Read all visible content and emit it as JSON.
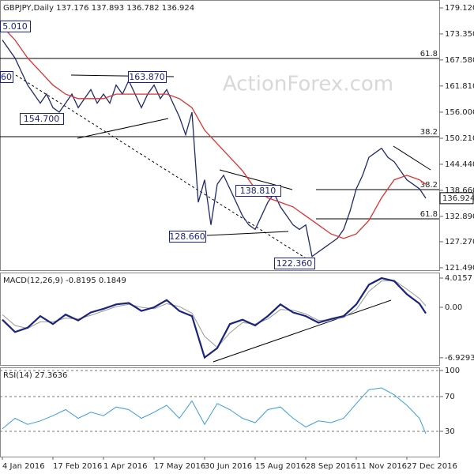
{
  "chart_data": [
    {
      "type": "line",
      "title": "GBPJPY,Daily  137.176 137.893 136.782 136.924",
      "watermark": "ActionForex.com",
      "xlim": [
        -1.5,
        276.5
      ],
      "ylim": [
        120.96,
        180.87
      ],
      "yticks": [
        {
          "value": 179.12,
          "label": "179.120"
        },
        {
          "value": 173.35,
          "label": "173.350"
        },
        {
          "value": 167.58,
          "label": "167.580"
        },
        {
          "value": 161.81,
          "label": "161.810"
        },
        {
          "value": 156,
          "label": "156.000"
        },
        {
          "value": 150.21,
          "label": "150.210"
        },
        {
          "value": 144.44,
          "label": "144.440"
        },
        {
          "value": 138.66,
          "label": "138.660"
        },
        {
          "value": 132.89,
          "label": "132.890"
        },
        {
          "value": 127.27,
          "label": "127.270"
        },
        {
          "value": 121.49,
          "label": "121.490"
        }
      ],
      "last_price": {
        "value": 136.924,
        "label": "136.924"
      },
      "annotations": [
        "5.010",
        "60",
        "163.870",
        "154.700",
        "138.810",
        "128.660",
        "122.360"
      ],
      "levels": [
        {
          "value": 167.9,
          "label": "61.8"
        },
        {
          "value": 150.57,
          "label": "38.2"
        },
        {
          "value": 138.83,
          "label": "38.2"
        },
        {
          "value": 132.35,
          "label": "61.8"
        }
      ],
      "series": [
        {
          "color": "#1f2a6b",
          "x": [
            0,
            4,
            8,
            12,
            16,
            20,
            24,
            28,
            32,
            36,
            40,
            44,
            48,
            52,
            56,
            60,
            64,
            68,
            72,
            76,
            80,
            84,
            88,
            92,
            96,
            100,
            104,
            108,
            112,
            116,
            120,
            124,
            128,
            132,
            136,
            140,
            144,
            148,
            152,
            156,
            160,
            164,
            168,
            172,
            176,
            180,
            184,
            188,
            192,
            196,
            200,
            204,
            208,
            212,
            216,
            220,
            224,
            228,
            232,
            236,
            240,
            244,
            248,
            252,
            256,
            260,
            264,
            268
          ],
          "values": [
            172,
            170,
            168,
            165,
            162,
            160,
            158,
            160,
            157,
            156,
            158,
            160,
            157,
            159,
            161,
            158,
            160,
            158,
            162,
            160,
            163,
            160,
            157,
            160,
            162,
            159,
            161,
            158,
            155,
            151,
            156,
            136,
            141,
            131,
            140,
            142,
            139,
            136,
            133,
            131,
            130,
            133,
            136,
            138,
            135,
            133,
            131,
            130,
            131,
            124,
            125,
            126,
            127,
            128,
            130,
            134,
            139,
            142,
            146,
            147,
            148,
            146,
            145,
            143,
            141,
            140,
            139,
            136.924
          ]
        },
        {
          "color": "#e03030",
          "x": [
            0,
            8,
            16,
            24,
            32,
            40,
            48,
            56,
            64,
            72,
            80,
            88,
            96,
            104,
            112,
            120,
            128,
            136,
            144,
            152,
            160,
            168,
            176,
            184,
            192,
            200,
            208,
            216,
            224,
            232,
            240,
            248,
            256,
            264,
            268
          ],
          "values": [
            175,
            172,
            168,
            165,
            162,
            160,
            159,
            159,
            159,
            160,
            160,
            160,
            160,
            160,
            159,
            157,
            152,
            149,
            146,
            143,
            139,
            137,
            136,
            135,
            133,
            131,
            129,
            128,
            129,
            132,
            137,
            141,
            142,
            141,
            140
          ]
        }
      ]
    },
    {
      "type": "line",
      "title": "MACD(12,26,9) -0.8195 0.1849",
      "xlim": [
        -1.5,
        276.5
      ],
      "ylim": [
        -7.92,
        4.775
      ],
      "yticks": [
        4.0157,
        {
          "value": 0,
          "label": "0.00"
        },
        -6.9293
      ],
      "series": [
        {
          "color": "#999999",
          "width": 1,
          "x": [
            0,
            8,
            16,
            24,
            32,
            40,
            48,
            56,
            64,
            72,
            80,
            88,
            96,
            104,
            112,
            120,
            128,
            136,
            144,
            152,
            160,
            168,
            176,
            184,
            192,
            200,
            208,
            216,
            224,
            232,
            240,
            248,
            256,
            264,
            268
          ],
          "values": [
            -1.0,
            -2.5,
            -2.9,
            -2.0,
            -2.0,
            -1.5,
            -1.6,
            -1.1,
            -0.5,
            0.1,
            0.4,
            0,
            -0.2,
            0.5,
            0.1,
            -0.8,
            -4.0,
            -5.5,
            -3.5,
            -2.1,
            -2.3,
            -1.6,
            -0.3,
            -0.4,
            -0.9,
            -1.8,
            -1.7,
            -1.4,
            -0.3,
            2.2,
            3.6,
            3.7,
            2.5,
            1.2,
            0.1849
          ]
        },
        {
          "color": "#1a237e",
          "width": 2.2,
          "x": [
            0,
            8,
            16,
            24,
            32,
            40,
            48,
            56,
            64,
            72,
            80,
            88,
            96,
            104,
            112,
            120,
            128,
            136,
            144,
            152,
            160,
            168,
            176,
            184,
            192,
            200,
            208,
            216,
            224,
            232,
            240,
            248,
            256,
            264,
            268
          ],
          "values": [
            -1.7,
            -3.4,
            -2.8,
            -1.2,
            -2.3,
            -1.0,
            -1.8,
            -0.7,
            -0.2,
            0.4,
            0.6,
            -0.5,
            0,
            1.0,
            -0.5,
            -1.2,
            -6.9,
            -5.6,
            -2.3,
            -1.7,
            -2.5,
            -1.2,
            0.4,
            -0.7,
            -1.2,
            -2.1,
            -1.6,
            -1.2,
            0.4,
            3.1,
            4.0,
            3.6,
            1.8,
            0.5,
            -0.8195
          ]
        }
      ]
    },
    {
      "type": "line",
      "title": "RSI(14) 27.3636",
      "xlim": [
        -1.5,
        276.5
      ],
      "ylim": [
        0.9,
        103.6
      ],
      "grid": true,
      "yticks": [
        100,
        70,
        30
      ],
      "xticks": [
        {
          "value": 0,
          "label": "4 Jan 2016"
        },
        {
          "value": 32,
          "label": "17 Feb 2016"
        },
        {
          "value": 64,
          "label": "1 Apr 2016"
        },
        {
          "value": 96,
          "label": "17 May 2016"
        },
        {
          "value": 128,
          "label": "30 Jun 2016"
        },
        {
          "value": 160,
          "label": "15 Aug 2016"
        },
        {
          "value": 192,
          "label": "28 Sep 2016"
        },
        {
          "value": 224,
          "label": "11 Nov 2016"
        },
        {
          "value": 256,
          "label": "27 Dec 2016"
        }
      ],
      "series": [
        {
          "color": "#3a9ee0",
          "width": 1,
          "x": [
            0,
            8,
            16,
            24,
            32,
            40,
            48,
            56,
            64,
            72,
            80,
            88,
            96,
            104,
            112,
            120,
            128,
            136,
            144,
            152,
            160,
            168,
            176,
            184,
            192,
            200,
            208,
            216,
            224,
            232,
            240,
            248,
            256,
            264,
            268
          ],
          "values": [
            33,
            45,
            38,
            42,
            48,
            55,
            45,
            52,
            48,
            58,
            55,
            45,
            52,
            60,
            45,
            65,
            38,
            62,
            55,
            45,
            40,
            55,
            58,
            45,
            35,
            42,
            40,
            45,
            62,
            78,
            80,
            72,
            60,
            45,
            27.3636
          ]
        }
      ]
    }
  ]
}
